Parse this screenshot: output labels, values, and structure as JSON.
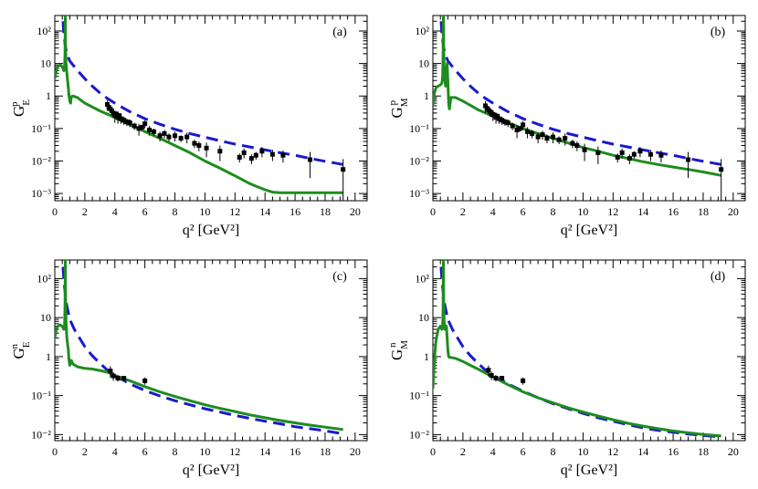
{
  "figure": {
    "panels": [
      "(a)",
      "(b)",
      "(c)",
      "(d)"
    ]
  },
  "colors": {
    "model_dashed": "#1a1acc",
    "model_solid": "#1e8c1e",
    "data": "#000000",
    "frame": "#000000"
  },
  "chart_data": [
    {
      "type": "line",
      "label": "(a)",
      "ylabel_main": "G",
      "ylabel_sub": "E",
      "ylabel_sup": "p",
      "xlabel": "q² [GeV²]",
      "xlim": [
        0,
        20.8
      ],
      "ylim": [
        0.0006,
        300
      ],
      "xticks": [
        "0",
        "2",
        "4",
        "6",
        "8",
        "10",
        "12",
        "14",
        "16",
        "18",
        "20"
      ],
      "yticks": [
        "10⁻³",
        "10⁻²",
        "10⁻¹",
        "1",
        "10",
        "10²"
      ],
      "series": [
        {
          "name": "dashed",
          "style": "dashed",
          "x": [
            0.55,
            0.6,
            0.7,
            0.8,
            1.0,
            1.3,
            1.6,
            2.0,
            2.5,
            3.0,
            3.5,
            4.0,
            5,
            6,
            7,
            8,
            9,
            10,
            11,
            12,
            13,
            14,
            15,
            16,
            17,
            18,
            19.2
          ],
          "y": [
            200,
            80,
            35,
            20,
            12,
            8,
            5.5,
            3.4,
            2.0,
            1.25,
            0.85,
            0.6,
            0.33,
            0.2,
            0.135,
            0.095,
            0.07,
            0.054,
            0.042,
            0.033,
            0.027,
            0.022,
            0.018,
            0.015,
            0.012,
            0.0098,
            0.0078
          ]
        },
        {
          "name": "solid",
          "style": "solid",
          "x": [
            0.0,
            0.1,
            0.2,
            0.35,
            0.5,
            0.6,
            0.65,
            0.68,
            0.7,
            0.72,
            0.75,
            0.8,
            0.85,
            0.9,
            0.95,
            1.0,
            1.05,
            1.1,
            1.2,
            1.5,
            2.0,
            3,
            4,
            5,
            6,
            7,
            8,
            9,
            10,
            11,
            12,
            13,
            13.5,
            14,
            14.5,
            15,
            16,
            17,
            18,
            19.2
          ],
          "y": [
            3.5,
            6,
            8,
            9,
            8,
            6,
            7,
            20,
            300,
            30,
            10,
            5,
            3,
            1.8,
            1.0,
            0.7,
            0.6,
            0.95,
            1.0,
            0.9,
            0.6,
            0.35,
            0.22,
            0.13,
            0.08,
            0.05,
            0.03,
            0.018,
            0.01,
            0.006,
            0.0035,
            0.002,
            0.0016,
            0.0013,
            0.0011,
            0.00105,
            0.00105,
            0.00105,
            0.00105,
            0.00105
          ]
        },
        {
          "name": "data",
          "style": "points",
          "x": [
            3.5,
            3.6,
            3.7,
            3.8,
            3.9,
            4.0,
            4.1,
            4.2,
            4.3,
            4.4,
            4.6,
            4.8,
            5.0,
            5.3,
            5.6,
            5.8,
            6.0,
            6.3,
            6.6,
            7.0,
            7.3,
            7.6,
            8.0,
            8.4,
            8.8,
            9.3,
            9.6,
            10.1,
            11.0,
            12.3,
            12.6,
            13.1,
            13.4,
            13.8,
            14.5,
            15.2,
            17.0,
            19.2
          ],
          "y": [
            0.55,
            0.45,
            0.4,
            0.35,
            0.3,
            0.25,
            0.28,
            0.22,
            0.25,
            0.2,
            0.18,
            0.16,
            0.15,
            0.12,
            0.1,
            0.11,
            0.14,
            0.09,
            0.08,
            0.06,
            0.07,
            0.055,
            0.06,
            0.05,
            0.055,
            0.035,
            0.03,
            0.025,
            0.02,
            0.013,
            0.018,
            0.012,
            0.015,
            0.02,
            0.016,
            0.015,
            0.011,
            0.0055
          ],
          "err": [
            0.2,
            0.1,
            0.1,
            0.1,
            0.08,
            0.1,
            0.06,
            0.08,
            0.05,
            0.06,
            0.05,
            0.04,
            0.04,
            0.03,
            0.04,
            0.02,
            0.04,
            0.03,
            0.02,
            0.02,
            0.02,
            0.015,
            0.02,
            0.012,
            0.02,
            0.01,
            0.01,
            0.012,
            0.01,
            0.004,
            0.006,
            0.004,
            0.004,
            0.007,
            0.006,
            0.006,
            0.008,
            0.006
          ]
        }
      ]
    },
    {
      "type": "line",
      "label": "(b)",
      "ylabel_main": "G",
      "ylabel_sub": "M",
      "ylabel_sup": "p",
      "xlabel": "q² [GeV²]",
      "xlim": [
        0,
        20.8
      ],
      "ylim": [
        0.0006,
        300
      ],
      "xticks": [
        "0",
        "2",
        "4",
        "6",
        "8",
        "10",
        "12",
        "14",
        "16",
        "18",
        "20"
      ],
      "yticks": [
        "10⁻³",
        "10⁻²",
        "10⁻¹",
        "1",
        "10",
        "10²"
      ],
      "series": [
        {
          "name": "dashed",
          "style": "dashed",
          "x": [
            0.55,
            0.6,
            0.7,
            0.8,
            1.0,
            1.3,
            1.6,
            2.0,
            2.5,
            3.0,
            3.5,
            4.0,
            5,
            6,
            7,
            8,
            9,
            10,
            11,
            12,
            13,
            14,
            15,
            16,
            17,
            18,
            19.2
          ],
          "y": [
            200,
            80,
            35,
            20,
            12,
            8,
            5.5,
            3.4,
            2.0,
            1.25,
            0.85,
            0.6,
            0.33,
            0.2,
            0.135,
            0.095,
            0.07,
            0.054,
            0.042,
            0.033,
            0.027,
            0.022,
            0.018,
            0.015,
            0.012,
            0.0098,
            0.0078
          ]
        },
        {
          "name": "solid",
          "style": "solid",
          "x": [
            0.0,
            0.1,
            0.2,
            0.35,
            0.5,
            0.6,
            0.65,
            0.68,
            0.7,
            0.72,
            0.75,
            0.8,
            0.85,
            0.9,
            0.95,
            1.0,
            1.05,
            1.1,
            1.2,
            1.5,
            2.0,
            3,
            4,
            5,
            6,
            7,
            8,
            9,
            10,
            11,
            12,
            13,
            14,
            15,
            16,
            17,
            18,
            19.2
          ],
          "y": [
            0.5,
            1.2,
            1.8,
            2.0,
            2.2,
            2.5,
            4,
            20,
            300,
            30,
            8,
            3,
            2,
            5,
            10,
            3,
            0.6,
            0.4,
            0.9,
            0.9,
            0.7,
            0.38,
            0.24,
            0.15,
            0.1,
            0.07,
            0.05,
            0.036,
            0.026,
            0.02,
            0.015,
            0.012,
            0.0095,
            0.0078,
            0.0065,
            0.0055,
            0.0046,
            0.0036
          ]
        },
        {
          "name": "data",
          "style": "points",
          "x": [
            3.5,
            3.6,
            3.7,
            3.8,
            3.9,
            4.0,
            4.1,
            4.2,
            4.3,
            4.4,
            4.6,
            4.8,
            5.0,
            5.3,
            5.6,
            5.8,
            6.0,
            6.3,
            6.6,
            7.0,
            7.3,
            7.6,
            8.0,
            8.4,
            8.8,
            9.3,
            9.6,
            10.1,
            11.0,
            12.3,
            12.6,
            13.1,
            13.4,
            13.8,
            14.5,
            15.2,
            17.0,
            19.2
          ],
          "y": [
            0.5,
            0.42,
            0.38,
            0.33,
            0.3,
            0.27,
            0.26,
            0.22,
            0.24,
            0.2,
            0.18,
            0.16,
            0.15,
            0.12,
            0.09,
            0.1,
            0.13,
            0.08,
            0.07,
            0.055,
            0.065,
            0.05,
            0.055,
            0.045,
            0.05,
            0.035,
            0.03,
            0.022,
            0.018,
            0.013,
            0.018,
            0.012,
            0.016,
            0.02,
            0.016,
            0.015,
            0.011,
            0.0055
          ],
          "err": [
            0.2,
            0.1,
            0.1,
            0.1,
            0.08,
            0.1,
            0.06,
            0.08,
            0.05,
            0.06,
            0.05,
            0.04,
            0.04,
            0.03,
            0.04,
            0.02,
            0.04,
            0.03,
            0.02,
            0.02,
            0.02,
            0.015,
            0.02,
            0.012,
            0.02,
            0.01,
            0.01,
            0.012,
            0.01,
            0.004,
            0.006,
            0.004,
            0.004,
            0.007,
            0.006,
            0.006,
            0.008,
            0.006
          ]
        }
      ]
    },
    {
      "type": "line",
      "label": "(c)",
      "ylabel_main": "G",
      "ylabel_sub": "E",
      "ylabel_sup": "n",
      "xlabel": "q² [GeV²]",
      "xlim": [
        0,
        20.8
      ],
      "ylim": [
        0.007,
        300
      ],
      "xticks": [
        "0",
        "2",
        "4",
        "6",
        "8",
        "10",
        "12",
        "14",
        "16",
        "18",
        "20"
      ],
      "yticks": [
        "10⁻²",
        "10⁻¹",
        "1",
        "10",
        "10²"
      ],
      "series": [
        {
          "name": "dashed",
          "style": "dashed",
          "x": [
            0.55,
            0.6,
            0.7,
            0.8,
            1.0,
            1.3,
            1.6,
            2.0,
            2.5,
            3.0,
            3.5,
            4.0,
            5,
            6,
            7,
            8,
            9,
            10,
            11,
            12,
            13,
            14,
            15,
            16,
            17,
            18,
            19.2
          ],
          "y": [
            200,
            90,
            40,
            20,
            9,
            5,
            3.2,
            1.8,
            1.05,
            0.68,
            0.45,
            0.33,
            0.2,
            0.135,
            0.098,
            0.074,
            0.058,
            0.046,
            0.038,
            0.031,
            0.026,
            0.022,
            0.019,
            0.016,
            0.0142,
            0.0125,
            0.0105
          ]
        },
        {
          "name": "solid",
          "style": "solid",
          "x": [
            0.0,
            0.1,
            0.2,
            0.35,
            0.5,
            0.6,
            0.65,
            0.68,
            0.7,
            0.72,
            0.75,
            0.8,
            0.9,
            0.95,
            1.0,
            1.05,
            1.1,
            1.2,
            1.5,
            2,
            2.5,
            3,
            3.5,
            4,
            5,
            6,
            7,
            8,
            9,
            10,
            11,
            12,
            13,
            14,
            15,
            16,
            17,
            18,
            19.2
          ],
          "y": [
            3,
            5,
            6,
            6.5,
            6,
            5,
            6,
            20,
            300,
            30,
            8,
            3,
            1.5,
            0.8,
            0.6,
            0.7,
            0.8,
            0.65,
            0.55,
            0.5,
            0.48,
            0.44,
            0.4,
            0.33,
            0.24,
            0.17,
            0.125,
            0.095,
            0.074,
            0.058,
            0.047,
            0.039,
            0.032,
            0.027,
            0.023,
            0.02,
            0.0175,
            0.0155,
            0.0135
          ]
        },
        {
          "name": "data",
          "style": "points",
          "x": [
            3.7,
            3.9,
            4.2,
            4.6,
            6.0
          ],
          "y": [
            0.43,
            0.32,
            0.28,
            0.28,
            0.24
          ],
          "err": [
            0.14,
            0.08,
            0.05,
            0.04,
            0.05
          ]
        }
      ]
    },
    {
      "type": "line",
      "label": "(d)",
      "ylabel_main": "G",
      "ylabel_sub": "M",
      "ylabel_sup": "n",
      "xlabel": "q² [GeV²]",
      "xlim": [
        0,
        20.8
      ],
      "ylim": [
        0.007,
        300
      ],
      "xticks": [
        "0",
        "2",
        "4",
        "6",
        "8",
        "10",
        "12",
        "14",
        "16",
        "18",
        "20"
      ],
      "yticks": [
        "10⁻²",
        "10⁻¹",
        "1",
        "10",
        "10²"
      ],
      "series": [
        {
          "name": "dashed",
          "style": "dashed",
          "x": [
            0.55,
            0.6,
            0.7,
            0.8,
            1.0,
            1.3,
            1.6,
            2.0,
            2.5,
            3.0,
            3.5,
            4.0,
            5,
            6,
            7,
            8,
            9,
            10,
            11,
            12,
            13,
            14,
            15,
            16,
            17,
            18,
            19.2
          ],
          "y": [
            200,
            90,
            40,
            20,
            9,
            5,
            3.2,
            1.8,
            1.05,
            0.68,
            0.45,
            0.33,
            0.2,
            0.13,
            0.088,
            0.062,
            0.046,
            0.035,
            0.027,
            0.022,
            0.018,
            0.015,
            0.0128,
            0.0115,
            0.0104,
            0.0095,
            0.0088
          ]
        },
        {
          "name": "solid",
          "style": "solid",
          "x": [
            0.0,
            0.1,
            0.2,
            0.35,
            0.5,
            0.6,
            0.65,
            0.68,
            0.7,
            0.72,
            0.75,
            0.8,
            0.9,
            0.95,
            1.0,
            1.05,
            1.1,
            1.2,
            1.5,
            2,
            2.5,
            3,
            3.5,
            4,
            5,
            6,
            7,
            8,
            9,
            10,
            11,
            12,
            13,
            14,
            15,
            16,
            17,
            18,
            19.2
          ],
          "y": [
            0.15,
            0.8,
            2.5,
            5,
            6,
            5,
            6,
            20,
            300,
            30,
            8,
            5,
            6,
            3,
            1.5,
            1.0,
            0.95,
            0.95,
            0.9,
            0.75,
            0.6,
            0.48,
            0.38,
            0.3,
            0.19,
            0.125,
            0.088,
            0.065,
            0.049,
            0.038,
            0.03,
            0.024,
            0.0195,
            0.0165,
            0.0142,
            0.0124,
            0.0111,
            0.0101,
            0.0092
          ]
        },
        {
          "name": "data",
          "style": "points",
          "x": [
            3.7,
            3.9,
            4.2,
            4.6,
            6.0
          ],
          "y": [
            0.45,
            0.33,
            0.28,
            0.28,
            0.24
          ],
          "err": [
            0.14,
            0.08,
            0.05,
            0.04,
            0.05
          ]
        }
      ]
    }
  ]
}
